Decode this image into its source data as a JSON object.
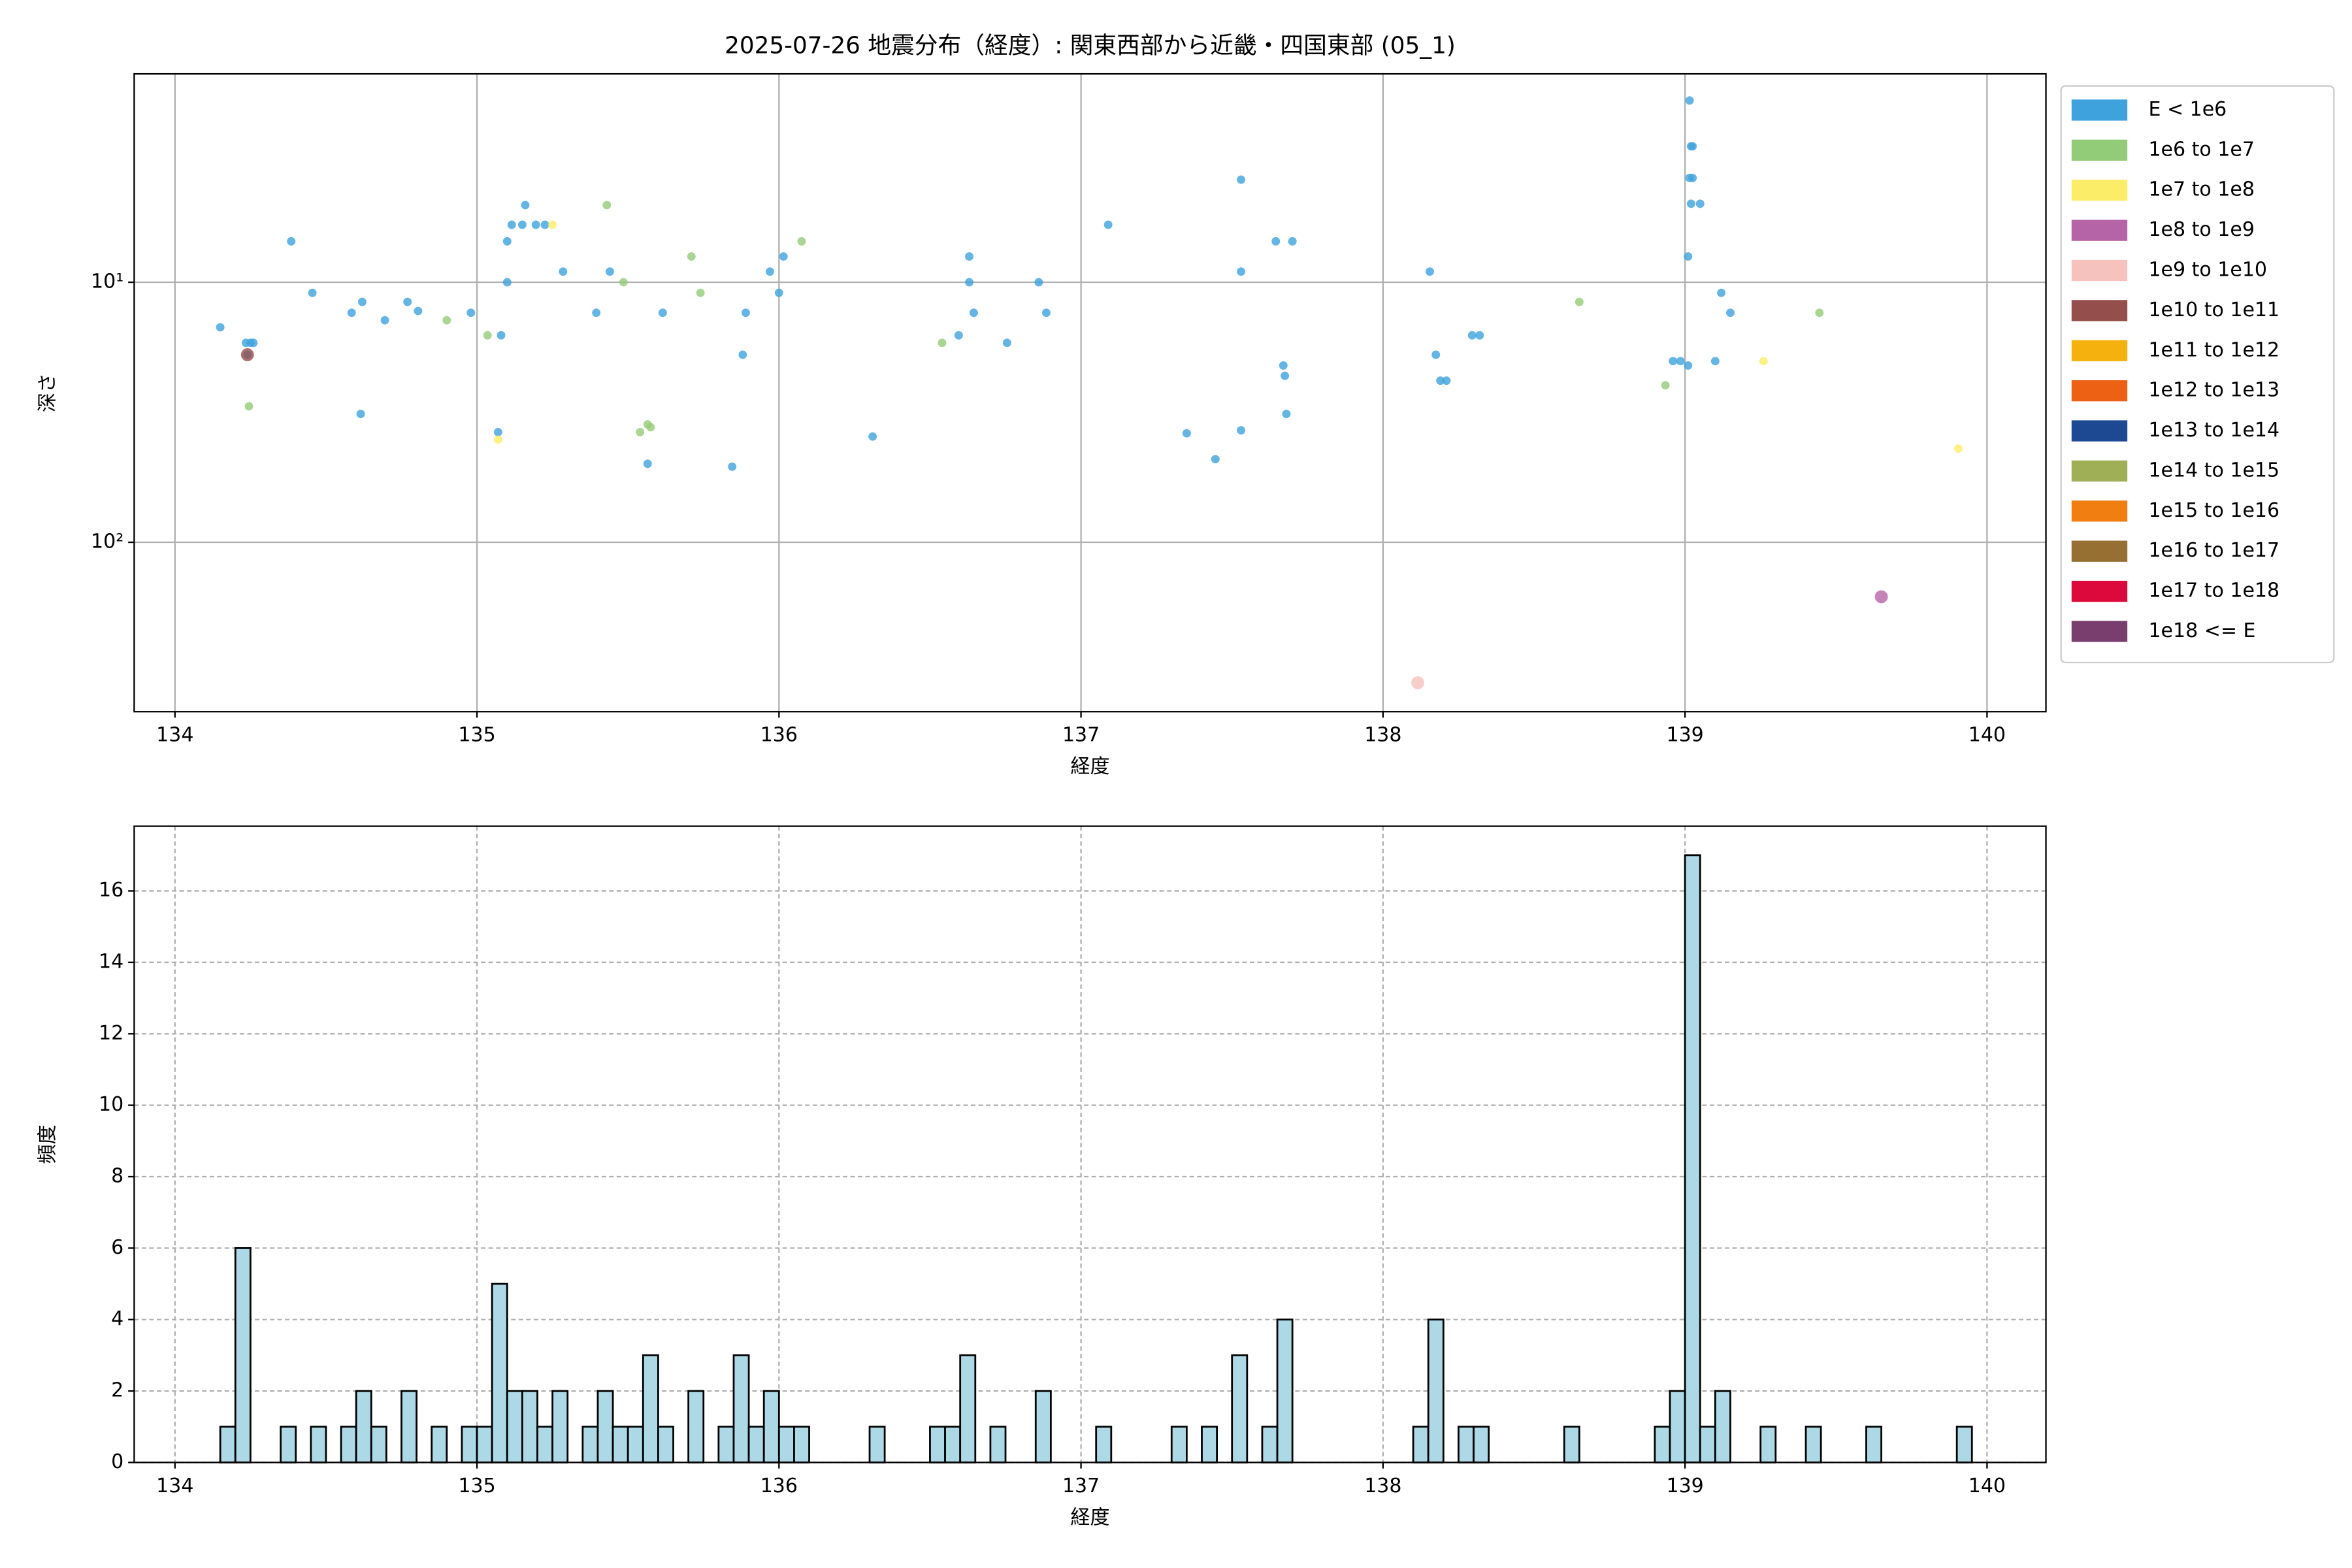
{
  "chart_data": [
    {
      "type": "scatter",
      "title": "2025-07-26 地震分布（経度）: 関東西部から近畿・四国東部 (05_1)",
      "xlabel": "経度",
      "ylabel": "深さ",
      "xlim": [
        133.865,
        140.195
      ],
      "xticks": [
        134,
        135,
        136,
        137,
        138,
        139,
        140
      ],
      "ylim": [
        1.58,
        448
      ],
      "yscale": "log",
      "yinverted": true,
      "yticks": [
        {
          "value": 10,
          "label": "10¹"
        },
        {
          "value": 100,
          "label": "10²"
        }
      ],
      "grid": true,
      "legend": "outside right",
      "series": [
        {
          "name": "E < 1e6",
          "color": "#3ea3dd",
          "x": [
            134.15,
            134.235,
            134.25,
            134.26,
            134.24,
            134.385,
            134.455,
            134.585,
            134.62,
            134.615,
            134.695,
            134.77,
            134.805,
            134.98,
            135.07,
            135.08,
            135.1,
            135.1,
            135.115,
            135.15,
            135.16,
            135.195,
            135.225,
            135.285,
            135.395,
            135.44,
            135.565,
            135.615,
            135.845,
            135.88,
            135.89,
            135.97,
            136.0,
            136.015,
            136.31,
            136.595,
            136.63,
            136.63,
            136.645,
            136.755,
            136.86,
            136.885,
            137.09,
            137.35,
            137.445,
            137.53,
            137.53,
            137.53,
            137.645,
            137.7,
            137.67,
            137.675,
            137.68,
            138.155,
            138.175,
            138.19,
            138.21,
            138.295,
            138.32,
            138.96,
            138.985,
            139.01,
            139.01,
            139.015,
            139.02,
            139.025,
            139.015,
            139.025,
            139.02,
            139.05,
            139.1,
            139.12,
            139.15
          ],
          "y": [
            14.9,
            17.1,
            17.1,
            17.1,
            19,
            6.96,
            10.98,
            13.1,
            11.9,
            32.1,
            14,
            11.9,
            12.9,
            13.1,
            37.7,
            16,
            10,
            6.96,
            6.01,
            6.01,
            5.05,
            6.01,
            6.01,
            9.1,
            13.1,
            9.1,
            49.9,
            13.1,
            51.2,
            19,
            13.1,
            9.1,
            10.98,
            7.96,
            39.2,
            16,
            7.96,
            10,
            13.1,
            17.1,
            10,
            13.1,
            6.01,
            38.1,
            47.9,
            37.1,
            4.03,
            9.1,
            6.96,
            6.96,
            20.9,
            22.9,
            32.1,
            9.1,
            19,
            23.9,
            23.9,
            16,
            16,
            20.1,
            20.1,
            20.9,
            7.96,
            2,
            3,
            3,
            3.97,
            3.97,
            4.99,
            4.99,
            20.1,
            10.98,
            13.1
          ]
        },
        {
          "name": "1e6 to 1e7",
          "color": "#93cc78",
          "x": [
            134.245,
            134.9,
            135.035,
            135.43,
            135.485,
            135.54,
            135.565,
            135.575,
            135.71,
            135.74,
            136.075,
            136.54,
            138.65,
            138.935,
            139.445
          ],
          "y": [
            30,
            14,
            16,
            5.05,
            10,
            37.7,
            35.2,
            36.1,
            7.96,
            10.98,
            6.96,
            17.1,
            11.9,
            24.9,
            13.1
          ]
        },
        {
          "name": "1e7 to 1e8",
          "color": "#fced68",
          "x": [
            135.07,
            135.25,
            139.26,
            139.905
          ],
          "y": [
            40.3,
            6.01,
            20.1,
            43.6
          ]
        },
        {
          "name": "1e8 to 1e9",
          "color": "#b564a7",
          "x": [
            139.65
          ],
          "y": [
            162
          ]
        },
        {
          "name": "1e9 to 1e10",
          "color": "#f5c2bd",
          "x": [
            138.115
          ],
          "y": [
            347
          ]
        },
        {
          "name": "1e10 to 1e11",
          "color": "#944e4c",
          "x": [
            134.24
          ],
          "y": [
            19
          ]
        },
        {
          "name": "1e11 to 1e12",
          "color": "#f5b20e",
          "x": [],
          "y": []
        },
        {
          "name": "1e12 to 1e13",
          "color": "#ec6113",
          "x": [],
          "y": []
        },
        {
          "name": "1e13 to 1e14",
          "color": "#1d4993",
          "x": [],
          "y": []
        },
        {
          "name": "1e14 to 1e15",
          "color": "#9faf55",
          "x": [],
          "y": []
        },
        {
          "name": "1e15 to 1e16",
          "color": "#f17e11",
          "x": [],
          "y": []
        },
        {
          "name": "1e16 to 1e17",
          "color": "#966f33",
          "x": [],
          "y": []
        },
        {
          "name": "1e17 to 1e18",
          "color": "#dc0a3c",
          "x": [],
          "y": []
        },
        {
          "name": "1e18 <= E",
          "color": "#7a3e6e",
          "x": [],
          "y": []
        }
      ]
    },
    {
      "type": "histogram",
      "xlabel": "経度",
      "ylabel": "頻度",
      "xlim": [
        133.865,
        140.195
      ],
      "xticks": [
        134,
        135,
        136,
        137,
        138,
        139,
        140
      ],
      "ylim": [
        0,
        17.81
      ],
      "yticks": [
        0,
        2,
        4,
        6,
        8,
        10,
        12,
        14,
        16
      ],
      "grid": true,
      "color": "#add8e6",
      "edgecolor": "#000000",
      "bins": [
        134.15,
        134.2,
        134.25,
        134.3,
        134.35,
        134.4,
        134.45,
        134.5,
        134.55,
        134.6,
        134.65,
        134.7,
        134.75,
        134.8,
        134.85,
        134.9,
        134.95,
        135.0,
        135.05,
        135.1,
        135.15,
        135.2,
        135.25,
        135.3,
        135.35,
        135.4,
        135.45,
        135.5,
        135.55,
        135.6,
        135.65,
        135.7,
        135.75,
        135.8,
        135.85,
        135.9,
        135.95,
        136.0,
        136.05,
        136.1,
        136.15,
        136.2,
        136.25,
        136.3,
        136.35,
        136.4,
        136.45,
        136.5,
        136.55,
        136.6,
        136.65,
        136.7,
        136.75,
        136.8,
        136.85,
        136.9,
        136.95,
        137.0,
        137.05,
        137.1,
        137.15,
        137.2,
        137.25,
        137.3,
        137.35,
        137.4,
        137.45,
        137.5,
        137.55,
        137.6,
        137.65,
        137.7,
        137.75,
        137.8,
        137.85,
        137.9,
        137.95,
        138.0,
        138.05,
        138.1,
        138.15,
        138.2,
        138.25,
        138.3,
        138.35,
        138.4,
        138.45,
        138.5,
        138.55,
        138.6,
        138.65,
        138.7,
        138.75,
        138.8,
        138.85,
        138.9,
        138.95,
        139.0,
        139.05,
        139.1,
        139.15,
        139.2,
        139.25,
        139.3,
        139.35,
        139.4,
        139.45,
        139.5,
        139.55,
        139.6,
        139.65,
        139.7,
        139.75,
        139.8,
        139.85,
        139.9,
        139.95
      ],
      "counts": [
        1,
        6,
        0,
        0,
        1,
        0,
        1,
        0,
        1,
        2,
        1,
        0,
        2,
        0,
        1,
        0,
        1,
        1,
        5,
        2,
        2,
        1,
        2,
        0,
        1,
        2,
        1,
        1,
        3,
        1,
        0,
        2,
        0,
        1,
        3,
        1,
        2,
        1,
        1,
        0,
        0,
        0,
        0,
        1,
        0,
        0,
        0,
        1,
        1,
        3,
        0,
        1,
        0,
        0,
        2,
        0,
        0,
        0,
        1,
        0,
        0,
        0,
        0,
        1,
        0,
        1,
        0,
        3,
        0,
        1,
        4,
        0,
        0,
        0,
        0,
        0,
        0,
        0,
        0,
        1,
        4,
        0,
        1,
        1,
        0,
        0,
        0,
        0,
        0,
        1,
        0,
        0,
        0,
        0,
        0,
        1,
        2,
        17,
        1,
        2,
        0,
        0,
        1,
        0,
        0,
        1,
        0,
        0,
        0,
        1,
        0,
        0,
        0,
        0,
        0,
        1
      ]
    }
  ]
}
